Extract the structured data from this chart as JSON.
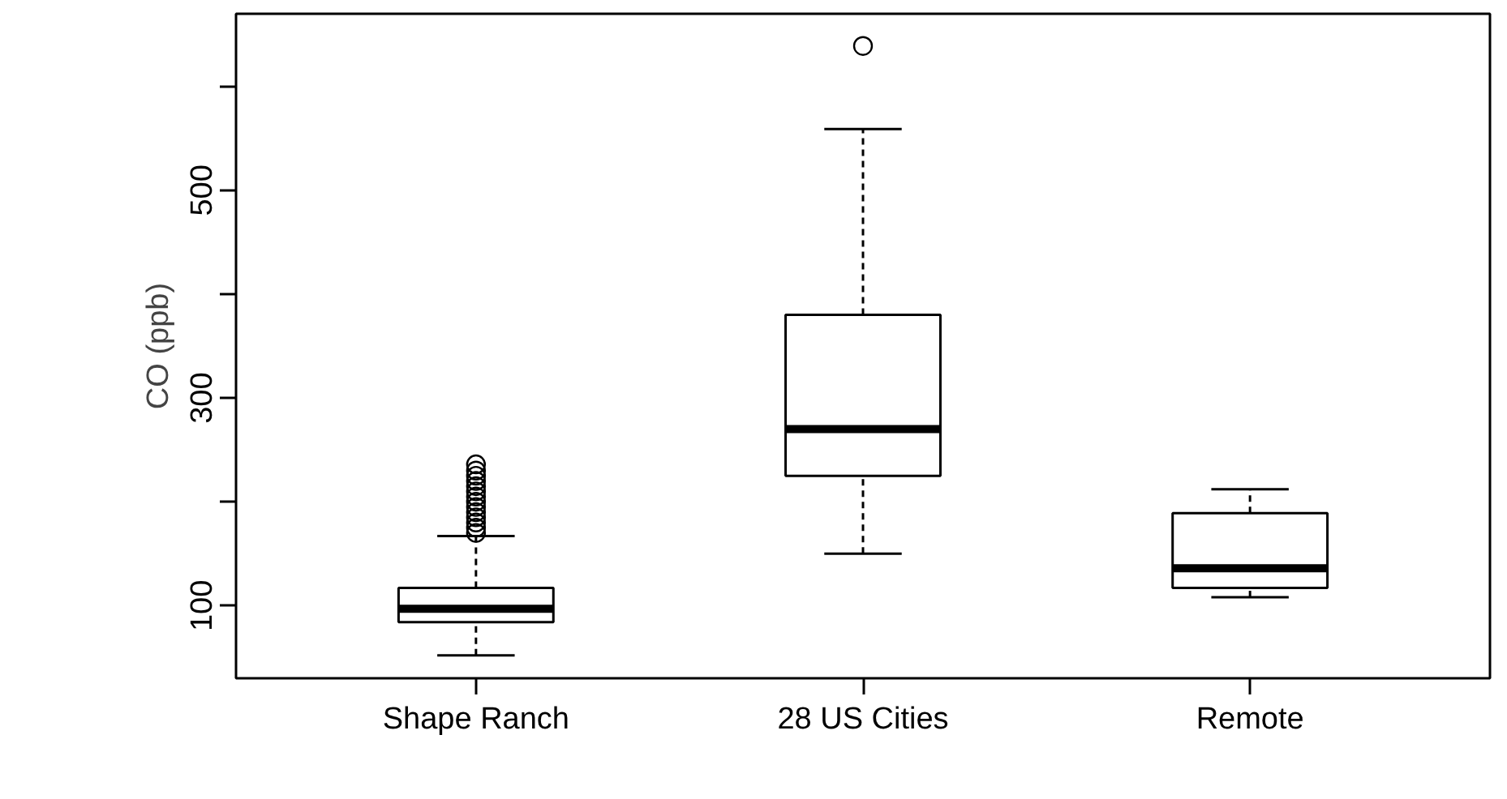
{
  "chart_data": {
    "type": "box",
    "ylabel": "CO (ppb)",
    "categories": [
      "Shape Ranch",
      "28 US Cities",
      "Remote"
    ],
    "boxes": [
      {
        "low": 52,
        "q1": 84,
        "median": 97,
        "q3": 117,
        "high": 167,
        "outliers": [
          170,
          175,
          180,
          185,
          190,
          195,
          200,
          205,
          210,
          215,
          220,
          225,
          230,
          236
        ]
      },
      {
        "low": 150,
        "q1": 225,
        "median": 270,
        "q3": 380,
        "high": 559,
        "outliers": [
          639
        ]
      },
      {
        "low": 108,
        "q1": 117,
        "median": 136,
        "q3": 189,
        "high": 212
      }
    ],
    "ylim": [
      30,
      670
    ],
    "yticks": [
      100,
      {
        "value": 200,
        "label": null
      },
      300,
      {
        "value": 400,
        "label": null
      },
      500,
      {
        "value": 600,
        "label": null
      }
    ],
    "grid": false
  }
}
